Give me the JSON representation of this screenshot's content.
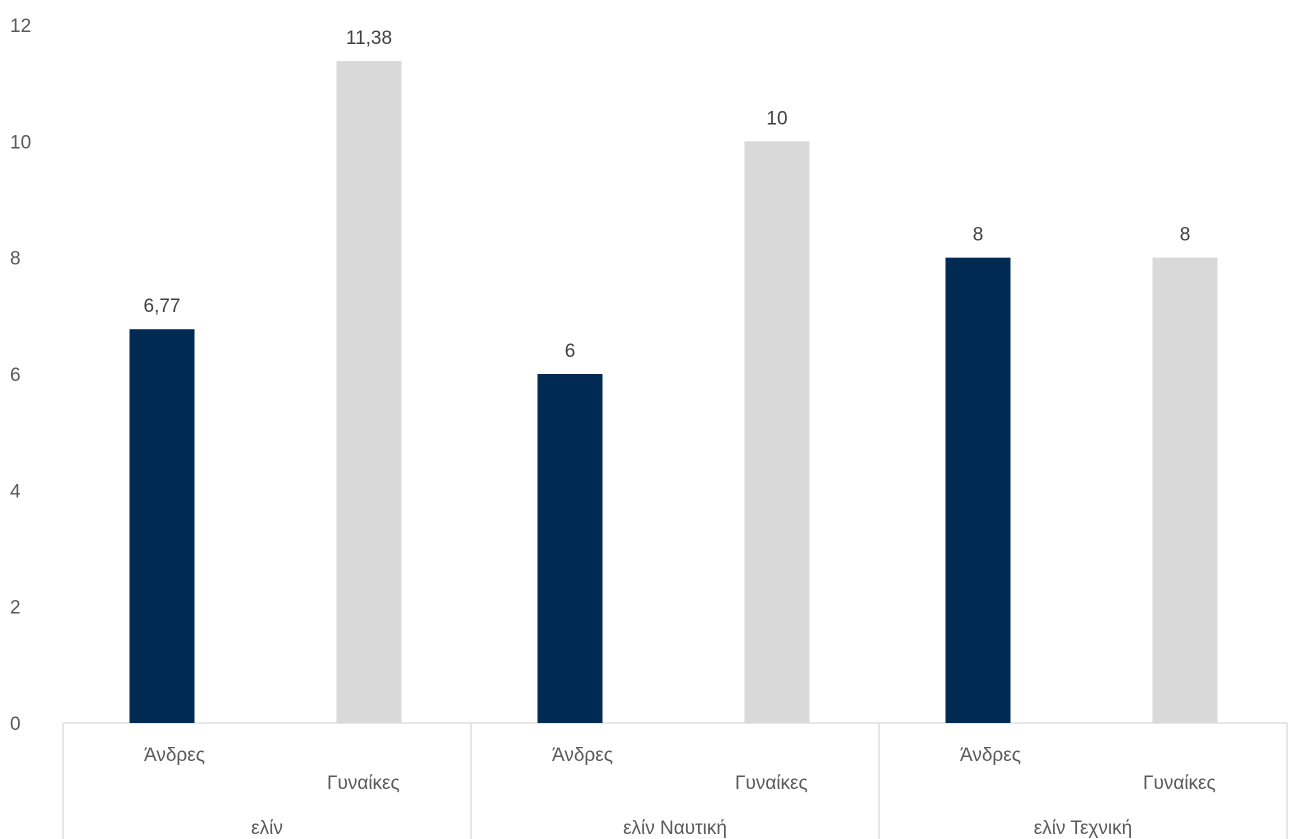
{
  "chart_data": {
    "type": "bar",
    "groups": [
      {
        "label": "ελίν",
        "bars": [
          {
            "category": "Άνδρες",
            "value": 6.77,
            "label": "6,77",
            "color": "#002a52"
          },
          {
            "category": "Γυναίκες",
            "value": 11.38,
            "label": "11,38",
            "color": "#d9d9d9"
          }
        ]
      },
      {
        "label": "ελίν Ναυτική",
        "bars": [
          {
            "category": "Άνδρες",
            "value": 6,
            "label": "6",
            "color": "#002a52"
          },
          {
            "category": "Γυναίκες",
            "value": 10,
            "label": "10",
            "color": "#d9d9d9"
          }
        ]
      },
      {
        "label": "ελίν Τεχνική",
        "bars": [
          {
            "category": "Άνδρες",
            "value": 8,
            "label": "8",
            "color": "#002a52"
          },
          {
            "category": "Γυναίκες",
            "value": 8,
            "label": "8",
            "color": "#d9d9d9"
          }
        ]
      }
    ],
    "ylim": [
      0,
      12
    ],
    "yticks": [
      "0",
      "2",
      "4",
      "6",
      "8",
      "10",
      "12"
    ],
    "grid": false,
    "legend": "none",
    "title": "",
    "xlabel": "",
    "ylabel": ""
  }
}
